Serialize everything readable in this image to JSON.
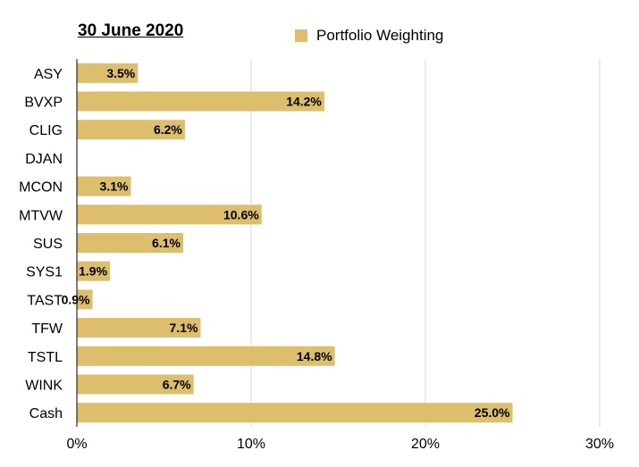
{
  "chart_data": {
    "type": "bar",
    "orientation": "horizontal",
    "title": "30 June 2020",
    "legend_position": "top",
    "series": [
      {
        "name": "Portfolio Weighting",
        "color": "#ddbe6c",
        "values": [
          3.5,
          14.2,
          6.2,
          0,
          3.1,
          10.6,
          6.1,
          1.9,
          0.9,
          7.1,
          14.8,
          6.7,
          25.0
        ],
        "data_labels": [
          "3.5%",
          "14.2%",
          "6.2%",
          "",
          "3.1%",
          "10.6%",
          "6.1%",
          "1.9%",
          "0.9%",
          "7.1%",
          "14.8%",
          "6.7%",
          "25.0%"
        ]
      }
    ],
    "categories": [
      "ASY",
      "BVXP",
      "CLIG",
      "DJAN",
      "MCON",
      "MTVW",
      "SUS",
      "SYS1",
      "TAST",
      "TFW",
      "TSTL",
      "WINK",
      "Cash"
    ],
    "xlim": [
      0,
      30
    ],
    "x_ticks": [
      0,
      10,
      20,
      30
    ],
    "x_tick_labels": [
      "0%",
      "10%",
      "20%",
      "30%"
    ],
    "xlabel": "",
    "ylabel": "",
    "grid": "vertical",
    "gridline_color": "#d9d9d9"
  }
}
